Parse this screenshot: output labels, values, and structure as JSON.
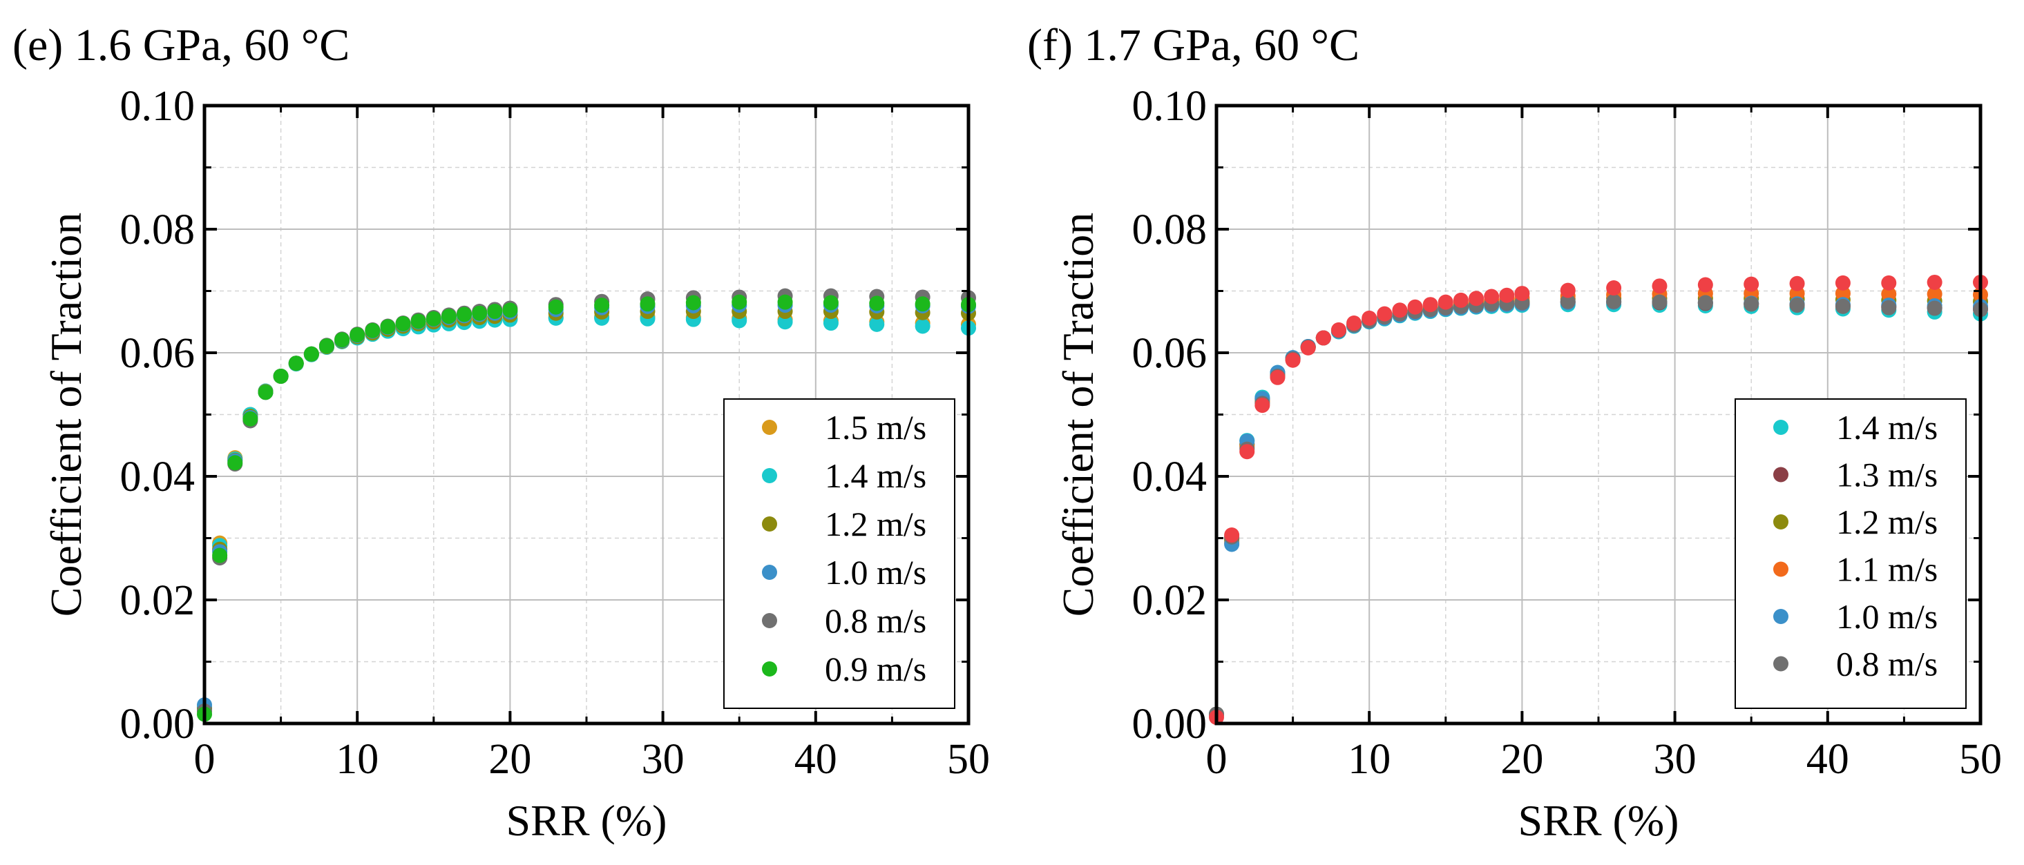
{
  "chart_data": [
    {
      "type": "scatter",
      "panel_title": "(e) 1.6 GPa, 60 °C",
      "xlabel": "SRR (%)",
      "ylabel": "Coefficient of Traction",
      "xlim": [
        0,
        50
      ],
      "ylim": [
        0,
        0.1
      ],
      "x_ticks": [
        "0",
        "10",
        "20",
        "30",
        "40",
        "50"
      ],
      "y_ticks": [
        "0.00",
        "0.02",
        "0.04",
        "0.06",
        "0.08",
        "0.10"
      ],
      "grid": true,
      "legend_position": "bottom-right",
      "x": [
        0,
        1,
        2,
        3,
        4,
        5,
        6,
        7,
        8,
        9,
        10,
        11,
        12,
        13,
        14,
        15,
        16,
        17,
        18,
        19,
        20,
        23,
        26,
        29,
        32,
        35,
        38,
        41,
        44,
        47,
        50
      ],
      "series": [
        {
          "name": "1.5 m/s",
          "color": "#d99a1b",
          "values": [
            0.0025,
            0.0292,
            0.043,
            0.05,
            0.0538,
            0.0562,
            0.0582,
            0.0597,
            0.0609,
            0.0618,
            0.0625,
            0.0631,
            0.0636,
            0.064,
            0.0643,
            0.0646,
            0.0648,
            0.065,
            0.0652,
            0.0654,
            0.0655,
            0.0657,
            0.0658,
            0.0658,
            0.0657,
            0.0656,
            0.0654,
            0.0652,
            0.065,
            0.0648,
            0.0646
          ]
        },
        {
          "name": "1.4 m/s",
          "color": "#19c9cc",
          "values": [
            0.0025,
            0.0288,
            0.0428,
            0.05,
            0.0538,
            0.0562,
            0.0582,
            0.0597,
            0.0609,
            0.0618,
            0.0624,
            0.063,
            0.0635,
            0.0639,
            0.0642,
            0.0645,
            0.0647,
            0.0649,
            0.0651,
            0.0653,
            0.0654,
            0.0656,
            0.0656,
            0.0655,
            0.0654,
            0.0652,
            0.065,
            0.0648,
            0.0646,
            0.0643,
            0.064
          ]
        },
        {
          "name": "1.2 m/s",
          "color": "#8c8a0e",
          "values": [
            0.0025,
            0.0282,
            0.0426,
            0.0497,
            0.0537,
            0.0562,
            0.0583,
            0.0598,
            0.061,
            0.0619,
            0.0626,
            0.0632,
            0.0638,
            0.0643,
            0.0647,
            0.065,
            0.0653,
            0.0655,
            0.0657,
            0.0659,
            0.0661,
            0.0664,
            0.0666,
            0.0667,
            0.0667,
            0.0667,
            0.0667,
            0.0667,
            0.0666,
            0.0665,
            0.0664
          ]
        },
        {
          "name": "1.0 m/s",
          "color": "#3b90c9",
          "values": [
            0.003,
            0.0278,
            0.0425,
            0.0495,
            0.0536,
            0.0562,
            0.0583,
            0.0598,
            0.0611,
            0.062,
            0.0628,
            0.0635,
            0.0641,
            0.0646,
            0.065,
            0.0654,
            0.0657,
            0.066,
            0.0662,
            0.0664,
            0.0666,
            0.067,
            0.0673,
            0.0675,
            0.0676,
            0.0677,
            0.0677,
            0.0677,
            0.0676,
            0.0676,
            0.0675
          ]
        },
        {
          "name": "0.8 m/s",
          "color": "#707070",
          "values": [
            0.002,
            0.0268,
            0.042,
            0.049,
            0.0536,
            0.0562,
            0.0583,
            0.0598,
            0.0612,
            0.0622,
            0.063,
            0.0637,
            0.0643,
            0.0648,
            0.0653,
            0.0657,
            0.0661,
            0.0664,
            0.0667,
            0.067,
            0.0672,
            0.0678,
            0.0683,
            0.0687,
            0.0689,
            0.069,
            0.0692,
            0.0692,
            0.0691,
            0.069,
            0.0689
          ]
        },
        {
          "name": "0.9 m/s",
          "color": "#1cb81c",
          "values": [
            0.0015,
            0.0272,
            0.0422,
            0.0493,
            0.0536,
            0.0562,
            0.0583,
            0.0598,
            0.0611,
            0.0621,
            0.0629,
            0.0636,
            0.0642,
            0.0647,
            0.0651,
            0.0655,
            0.0659,
            0.0662,
            0.0664,
            0.0667,
            0.0669,
            0.0674,
            0.0677,
            0.0679,
            0.0681,
            0.0682,
            0.0682,
            0.0681,
            0.068,
            0.0679,
            0.0678
          ]
        }
      ]
    },
    {
      "type": "scatter",
      "panel_title": "(f) 1.7 GPa, 60 °C",
      "xlabel": "SRR (%)",
      "ylabel": "Coefficient of Traction",
      "xlim": [
        0,
        50
      ],
      "ylim": [
        0,
        0.1
      ],
      "x_ticks": [
        "0",
        "10",
        "20",
        "30",
        "40",
        "50"
      ],
      "y_ticks": [
        "0.00",
        "0.02",
        "0.04",
        "0.06",
        "0.08",
        "0.10"
      ],
      "grid": true,
      "legend_position": "bottom-right",
      "x": [
        0,
        1,
        2,
        3,
        4,
        5,
        6,
        7,
        8,
        9,
        10,
        11,
        12,
        13,
        14,
        15,
        16,
        17,
        18,
        19,
        20,
        23,
        26,
        29,
        32,
        35,
        38,
        41,
        44,
        47,
        50
      ],
      "series": [
        {
          "name": "1.4 m/s",
          "color": "#19c9cc",
          "values": [
            0.0015,
            0.0295,
            0.0458,
            0.0528,
            0.0568,
            0.0592,
            0.061,
            0.0624,
            0.0634,
            0.0643,
            0.065,
            0.0655,
            0.066,
            0.0664,
            0.0667,
            0.067,
            0.0672,
            0.0674,
            0.0675,
            0.0676,
            0.0677,
            0.0678,
            0.0678,
            0.0677,
            0.0676,
            0.0675,
            0.0673,
            0.0671,
            0.0669,
            0.0666,
            0.0663
          ]
        },
        {
          "name": "1.3 m/s",
          "color": "#8b3f46",
          "values": [
            0.0015,
            0.03,
            0.0452,
            0.0525,
            0.0566,
            0.0591,
            0.061,
            0.0624,
            0.0635,
            0.0644,
            0.0651,
            0.0657,
            0.0662,
            0.0666,
            0.0669,
            0.0672,
            0.0674,
            0.0676,
            0.0678,
            0.0679,
            0.068,
            0.0682,
            0.0682,
            0.0681,
            0.068,
            0.0679,
            0.0678,
            0.0676,
            0.0675,
            0.0673,
            0.0671
          ]
        },
        {
          "name": "1.2 m/s",
          "color": "#8c8a0e",
          "values": [
            0.0015,
            0.0298,
            0.045,
            0.0522,
            0.0564,
            0.059,
            0.0609,
            0.0624,
            0.0636,
            0.0645,
            0.0652,
            0.0658,
            0.0663,
            0.0668,
            0.0671,
            0.0674,
            0.0677,
            0.0679,
            0.0681,
            0.0683,
            0.0684,
            0.0687,
            0.0688,
            0.0688,
            0.0688,
            0.0688,
            0.0687,
            0.0686,
            0.0685,
            0.0684,
            0.0683
          ]
        },
        {
          "name": "1.1 m/s",
          "color": "#f26a1b",
          "values": [
            0.0015,
            0.0292,
            0.0447,
            0.052,
            0.0563,
            0.0589,
            0.0609,
            0.0624,
            0.0636,
            0.0646,
            0.0654,
            0.066,
            0.0666,
            0.067,
            0.0674,
            0.0677,
            0.068,
            0.0683,
            0.0685,
            0.0687,
            0.0689,
            0.0692,
            0.0694,
            0.0695,
            0.0696,
            0.0696,
            0.0696,
            0.0696,
            0.0695,
            0.0695,
            0.0694
          ]
        },
        {
          "name": "1.0 m/s",
          "color": "#3b90c9",
          "values": [
            0.0015,
            0.029,
            0.0457,
            0.0526,
            0.0568,
            0.0592,
            0.061,
            0.0624,
            0.0635,
            0.0644,
            0.0651,
            0.0656,
            0.0661,
            0.0665,
            0.0668,
            0.0671,
            0.0673,
            0.0675,
            0.0677,
            0.0678,
            0.0679,
            0.0681,
            0.0682,
            0.0682,
            0.0681,
            0.068,
            0.0679,
            0.0678,
            0.0677,
            0.0676,
            0.0675
          ]
        },
        {
          "name": "0.8 m/s",
          "color": "#707070",
          "values": [
            0.0015,
            0.0302,
            0.0444,
            0.0518,
            0.0562,
            0.059,
            0.0609,
            0.0624,
            0.0636,
            0.0645,
            0.0652,
            0.0658,
            0.0663,
            0.0667,
            0.067,
            0.0673,
            0.0675,
            0.0677,
            0.0679,
            0.068,
            0.0681,
            0.0683,
            0.0683,
            0.0682,
            0.0681,
            0.0679,
            0.0677,
            0.0675,
            0.0673,
            0.0672,
            0.067
          ]
        },
        {
          "name": "",
          "color": "#ef4045",
          "values": [
            0.001,
            0.0305,
            0.044,
            0.0515,
            0.056,
            0.0588,
            0.0608,
            0.0624,
            0.0637,
            0.0648,
            0.0656,
            0.0663,
            0.0669,
            0.0674,
            0.0678,
            0.0682,
            0.0685,
            0.0688,
            0.0691,
            0.0693,
            0.0696,
            0.0701,
            0.0705,
            0.0708,
            0.071,
            0.0711,
            0.0712,
            0.0713,
            0.0713,
            0.0714,
            0.0714
          ]
        }
      ]
    }
  ]
}
